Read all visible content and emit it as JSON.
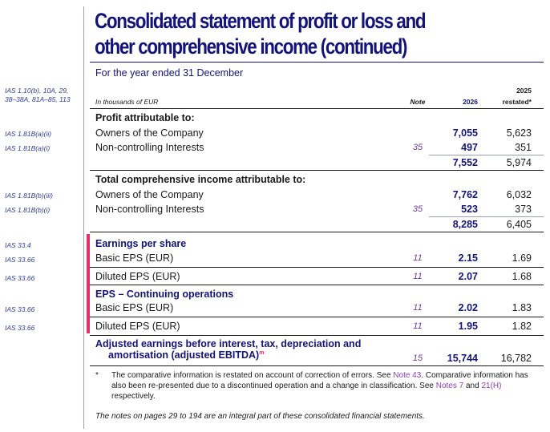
{
  "title": {
    "line1": "Consolidated statement of profit or loss and",
    "line2": "other comprehensive income (continued)"
  },
  "subtitle": "For the year ended 31 December",
  "header": {
    "ias_ref_line1": "IAS 1.10(b), 10A, 29,",
    "ias_ref_line2": "38–38A, 81A–85, 113",
    "units": "In thousands of EUR",
    "note": "Note",
    "year_current": "2026",
    "year_prior": "2025",
    "year_prior_sub": "restated*"
  },
  "sections": {
    "profit": {
      "heading": "Profit attributable to:",
      "rows": [
        {
          "ref": "IAS 1.81B(a)(ii)",
          "label": "Owners of the Company",
          "note": "",
          "v2026": "7,055",
          "v2025": "5,623"
        },
        {
          "ref": "IAS 1.81B(a)(i)",
          "label": "Non-controlling Interests",
          "note": "35",
          "v2026": "497",
          "v2025": "351"
        }
      ],
      "total2026": "7,552",
      "total2025": "5,974"
    },
    "tci": {
      "heading": "Total comprehensive income attributable to:",
      "rows": [
        {
          "ref": "IAS 1.81B(b)(iii)",
          "label": "Owners of the Company",
          "note": "",
          "v2026": "7,762",
          "v2025": "6,032"
        },
        {
          "ref": "IAS 1.81B(b)(i)",
          "label": "Non-controlling Interests",
          "note": "35",
          "v2026": "523",
          "v2025": "373"
        }
      ],
      "total2026": "8,285",
      "total2025": "6,405"
    },
    "eps": {
      "heading_ref": "IAS 33.4",
      "heading": "Earnings per share",
      "basic": {
        "ref": "IAS 33.66",
        "label": "Basic EPS (EUR)",
        "note": "11",
        "v2026": "2.15",
        "v2025": "1.69"
      },
      "diluted": {
        "ref": "IAS 33.66",
        "label": "Diluted EPS (EUR)",
        "note": "11",
        "v2026": "2.07",
        "v2025": "1.68"
      }
    },
    "eps_cont": {
      "heading": "EPS – Continuing operations",
      "basic": {
        "ref": "IAS 33.66",
        "label": "Basic EPS (EUR)",
        "note": "11",
        "v2026": "2.02",
        "v2025": "1.83"
      },
      "diluted": {
        "ref": "IAS 33.66",
        "label": "Diluted EPS (EUR)",
        "note": "11",
        "v2026": "1.95",
        "v2025": "1.82"
      }
    },
    "ebitda": {
      "line1": "Adjusted earnings before interest, tax, depreciation and",
      "line2": "amortisation (adjusted EBITDA)",
      "sup": "m",
      "note": "15",
      "v2026": "15,744",
      "v2025": "16,782"
    }
  },
  "footnote": {
    "star": "*",
    "t1": "The comparative information is restated on account of correction of errors. See ",
    "l1": "Note 43",
    "t2": ". Comparative information has also been re-presented due to a discontinued operation and a change in classification. See ",
    "l2": "Notes 7",
    "t3": " and ",
    "l3": "21(H)",
    "t4": " respectively."
  },
  "footer": "The notes on pages 29 to 194 are an integral part of these consolidated financial statements.",
  "colors": {
    "title": "#141478",
    "accent": "#e2316b",
    "link": "#8a3fb8"
  }
}
